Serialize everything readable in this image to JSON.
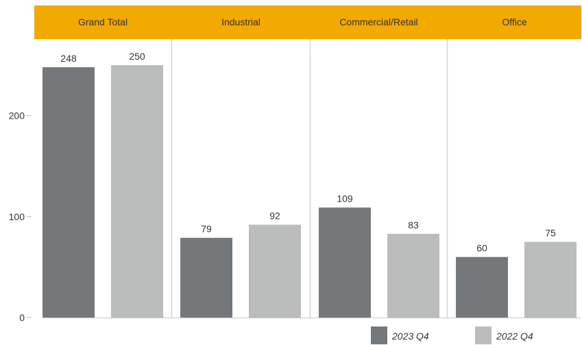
{
  "chart_data": {
    "type": "bar",
    "categories": [
      "Grand Total",
      "Industrial",
      "Commercial/Retail",
      "Office"
    ],
    "series": [
      {
        "name": "2023 Q4",
        "values": [
          248,
          79,
          109,
          60
        ],
        "color": "#75787b"
      },
      {
        "name": "2022 Q4",
        "values": [
          250,
          92,
          83,
          75
        ],
        "color": "#bbbcbc"
      }
    ],
    "yticks": [
      0,
      100,
      200
    ],
    "ylim": [
      0,
      275
    ],
    "header_color": "#f2a900",
    "legend_position": "bottom-right",
    "grid": false
  }
}
